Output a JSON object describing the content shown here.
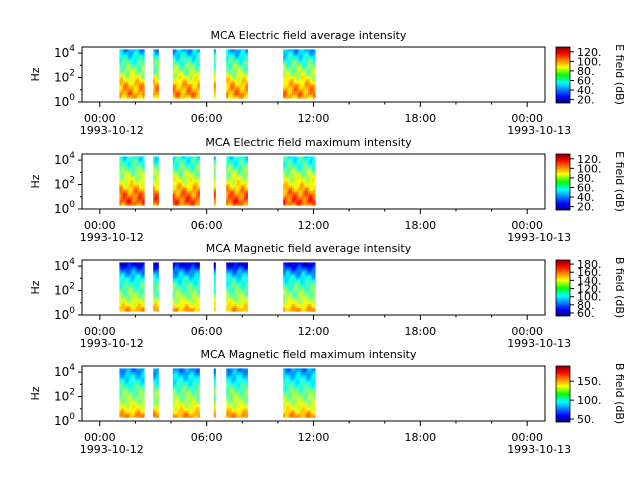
{
  "chart_data": [
    {
      "type": "heatmap",
      "title": "MCA  Electric field average intensity",
      "ylabel": "Hz",
      "colorbar_label": "E field (dB)",
      "colorbar_ticks": [
        "20.",
        "40.",
        "60.",
        "80.",
        "100.",
        "120."
      ],
      "colorbar_range": [
        15,
        130
      ],
      "y_ticks": [
        {
          "base": "10",
          "exp": "0"
        },
        {
          "base": "10",
          "exp": "2"
        },
        {
          "base": "10",
          "exp": "4"
        }
      ],
      "y_range_log10": [
        0,
        4.5
      ],
      "x_ticks": [
        "00:00",
        "06:00",
        "12:00",
        "18:00",
        "00:00"
      ],
      "x_range_hours": [
        -1,
        25
      ],
      "date_labels": [
        "1993-10-12",
        "1993-10-13"
      ],
      "data_segments_hours": [
        [
          1.1,
          2.5
        ],
        [
          3.0,
          3.3
        ],
        [
          4.1,
          5.6
        ],
        [
          6.4,
          6.5
        ],
        [
          7.1,
          8.3
        ],
        [
          10.3,
          12.1
        ]
      ],
      "intensity_profile_db": [
        [
          0,
          80
        ],
        [
          0.6,
          100
        ],
        [
          1.4,
          95
        ],
        [
          2.2,
          80
        ],
        [
          3.0,
          70
        ],
        [
          3.6,
          60
        ],
        [
          4.2,
          50
        ],
        [
          4.5,
          45
        ]
      ]
    },
    {
      "type": "heatmap",
      "title": "MCA  Electric field maximum intensity",
      "ylabel": "Hz",
      "colorbar_label": "E field (dB)",
      "colorbar_ticks": [
        "20.",
        "40.",
        "60.",
        "80.",
        "100.",
        "120."
      ],
      "colorbar_range": [
        15,
        130
      ],
      "y_ticks": [
        {
          "base": "10",
          "exp": "0"
        },
        {
          "base": "10",
          "exp": "2"
        },
        {
          "base": "10",
          "exp": "4"
        }
      ],
      "y_range_log10": [
        0,
        4.5
      ],
      "x_ticks": [
        "00:00",
        "06:00",
        "12:00",
        "18:00",
        "00:00"
      ],
      "x_range_hours": [
        -1,
        25
      ],
      "date_labels": [
        "1993-10-12",
        "1993-10-13"
      ],
      "data_segments_hours": [
        [
          1.1,
          2.5
        ],
        [
          3.0,
          3.3
        ],
        [
          4.1,
          5.6
        ],
        [
          6.4,
          6.5
        ],
        [
          7.1,
          8.3
        ],
        [
          10.3,
          12.1
        ]
      ],
      "intensity_profile_db": [
        [
          0,
          90
        ],
        [
          0.6,
          108
        ],
        [
          1.4,
          100
        ],
        [
          2.2,
          85
        ],
        [
          3.0,
          75
        ],
        [
          3.6,
          65
        ],
        [
          4.2,
          60
        ],
        [
          4.5,
          58
        ]
      ]
    },
    {
      "type": "heatmap",
      "title": "MCA  Magnetic field average intensity",
      "ylabel": "Hz",
      "colorbar_label": "B field (dB)",
      "colorbar_ticks": [
        "60.",
        "80.",
        "100.",
        "120.",
        "140.",
        "160.",
        "180."
      ],
      "colorbar_range": [
        55,
        190
      ],
      "y_ticks": [
        {
          "base": "10",
          "exp": "0"
        },
        {
          "base": "10",
          "exp": "2"
        },
        {
          "base": "10",
          "exp": "4"
        }
      ],
      "y_range_log10": [
        0,
        4.5
      ],
      "x_ticks": [
        "00:00",
        "06:00",
        "12:00",
        "18:00",
        "00:00"
      ],
      "x_range_hours": [
        -1,
        25
      ],
      "date_labels": [
        "1993-10-12",
        "1993-10-13"
      ],
      "data_segments_hours": [
        [
          1.1,
          2.5
        ],
        [
          3.0,
          3.3
        ],
        [
          4.1,
          5.6
        ],
        [
          6.4,
          6.5
        ],
        [
          7.1,
          8.3
        ],
        [
          10.3,
          12.1
        ]
      ],
      "intensity_profile_db": [
        [
          0.5,
          150
        ],
        [
          1.0,
          135
        ],
        [
          1.6,
          125
        ],
        [
          2.4,
          115
        ],
        [
          3.0,
          105
        ],
        [
          3.6,
          90
        ],
        [
          4.1,
          70
        ],
        [
          4.5,
          62
        ]
      ]
    },
    {
      "type": "heatmap",
      "title": "MCA  Magnetic field maximum intensity",
      "ylabel": "Hz",
      "colorbar_label": "B field (dB)",
      "colorbar_ticks": [
        "50.",
        "100.",
        "150."
      ],
      "colorbar_range": [
        45,
        190
      ],
      "y_ticks": [
        {
          "base": "10",
          "exp": "0"
        },
        {
          "base": "10",
          "exp": "2"
        },
        {
          "base": "10",
          "exp": "4"
        }
      ],
      "y_range_log10": [
        0,
        4.5
      ],
      "x_ticks": [
        "00:00",
        "06:00",
        "12:00",
        "18:00",
        "00:00"
      ],
      "x_range_hours": [
        -1,
        25
      ],
      "date_labels": [
        "1993-10-12",
        "1993-10-13"
      ],
      "data_segments_hours": [
        [
          1.1,
          2.5
        ],
        [
          3.0,
          3.3
        ],
        [
          4.1,
          5.6
        ],
        [
          6.4,
          6.5
        ],
        [
          7.1,
          8.3
        ],
        [
          10.3,
          12.1
        ]
      ],
      "intensity_profile_db": [
        [
          0.5,
          150
        ],
        [
          1.0,
          135
        ],
        [
          1.6,
          125
        ],
        [
          2.4,
          115
        ],
        [
          3.0,
          105
        ],
        [
          3.6,
          95
        ],
        [
          4.1,
          85
        ],
        [
          4.5,
          80
        ]
      ]
    }
  ]
}
